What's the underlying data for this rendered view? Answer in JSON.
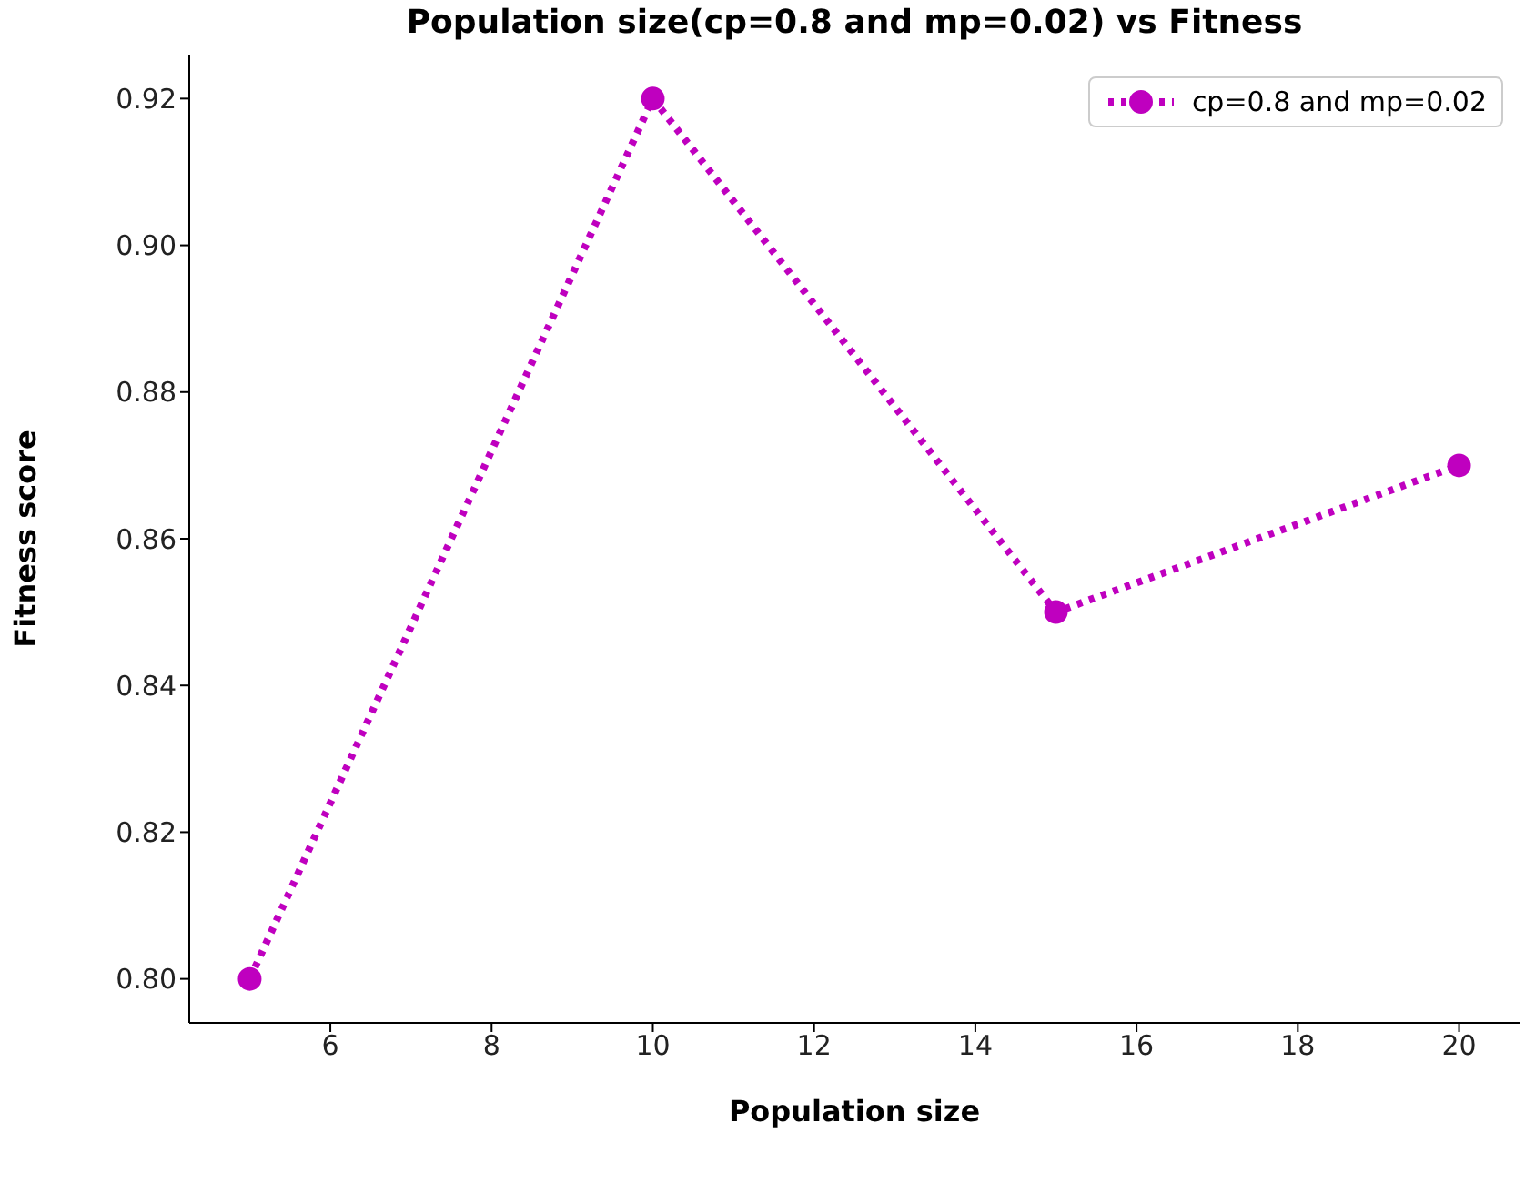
{
  "chart_data": {
    "type": "line",
    "title": "Population size(cp=0.8 and mp=0.02) vs Fitness",
    "xlabel": "Population size",
    "ylabel": "Fitness score",
    "x": [
      5,
      10,
      15,
      20
    ],
    "series": [
      {
        "name": "cp=0.8 and mp=0.02",
        "color": "#bf00bf",
        "values": [
          0.8,
          0.92,
          0.85,
          0.87
        ]
      }
    ],
    "xlim": [
      4.25,
      20.75
    ],
    "xticks": [
      6,
      8,
      10,
      12,
      14,
      16,
      18,
      20
    ],
    "ylim": [
      0.794,
      0.926
    ],
    "yticks": [
      {
        "value": 0.8,
        "label": "0.80"
      },
      {
        "value": 0.82,
        "label": "0.82"
      },
      {
        "value": 0.84,
        "label": "0.84"
      },
      {
        "value": 0.86,
        "label": "0.86"
      },
      {
        "value": 0.88,
        "label": "0.88"
      },
      {
        "value": 0.9,
        "label": "0.90"
      },
      {
        "value": 0.92,
        "label": "0.92"
      }
    ],
    "grid": false,
    "legend": "top right",
    "marker": "circle",
    "line_style": "dotted"
  }
}
